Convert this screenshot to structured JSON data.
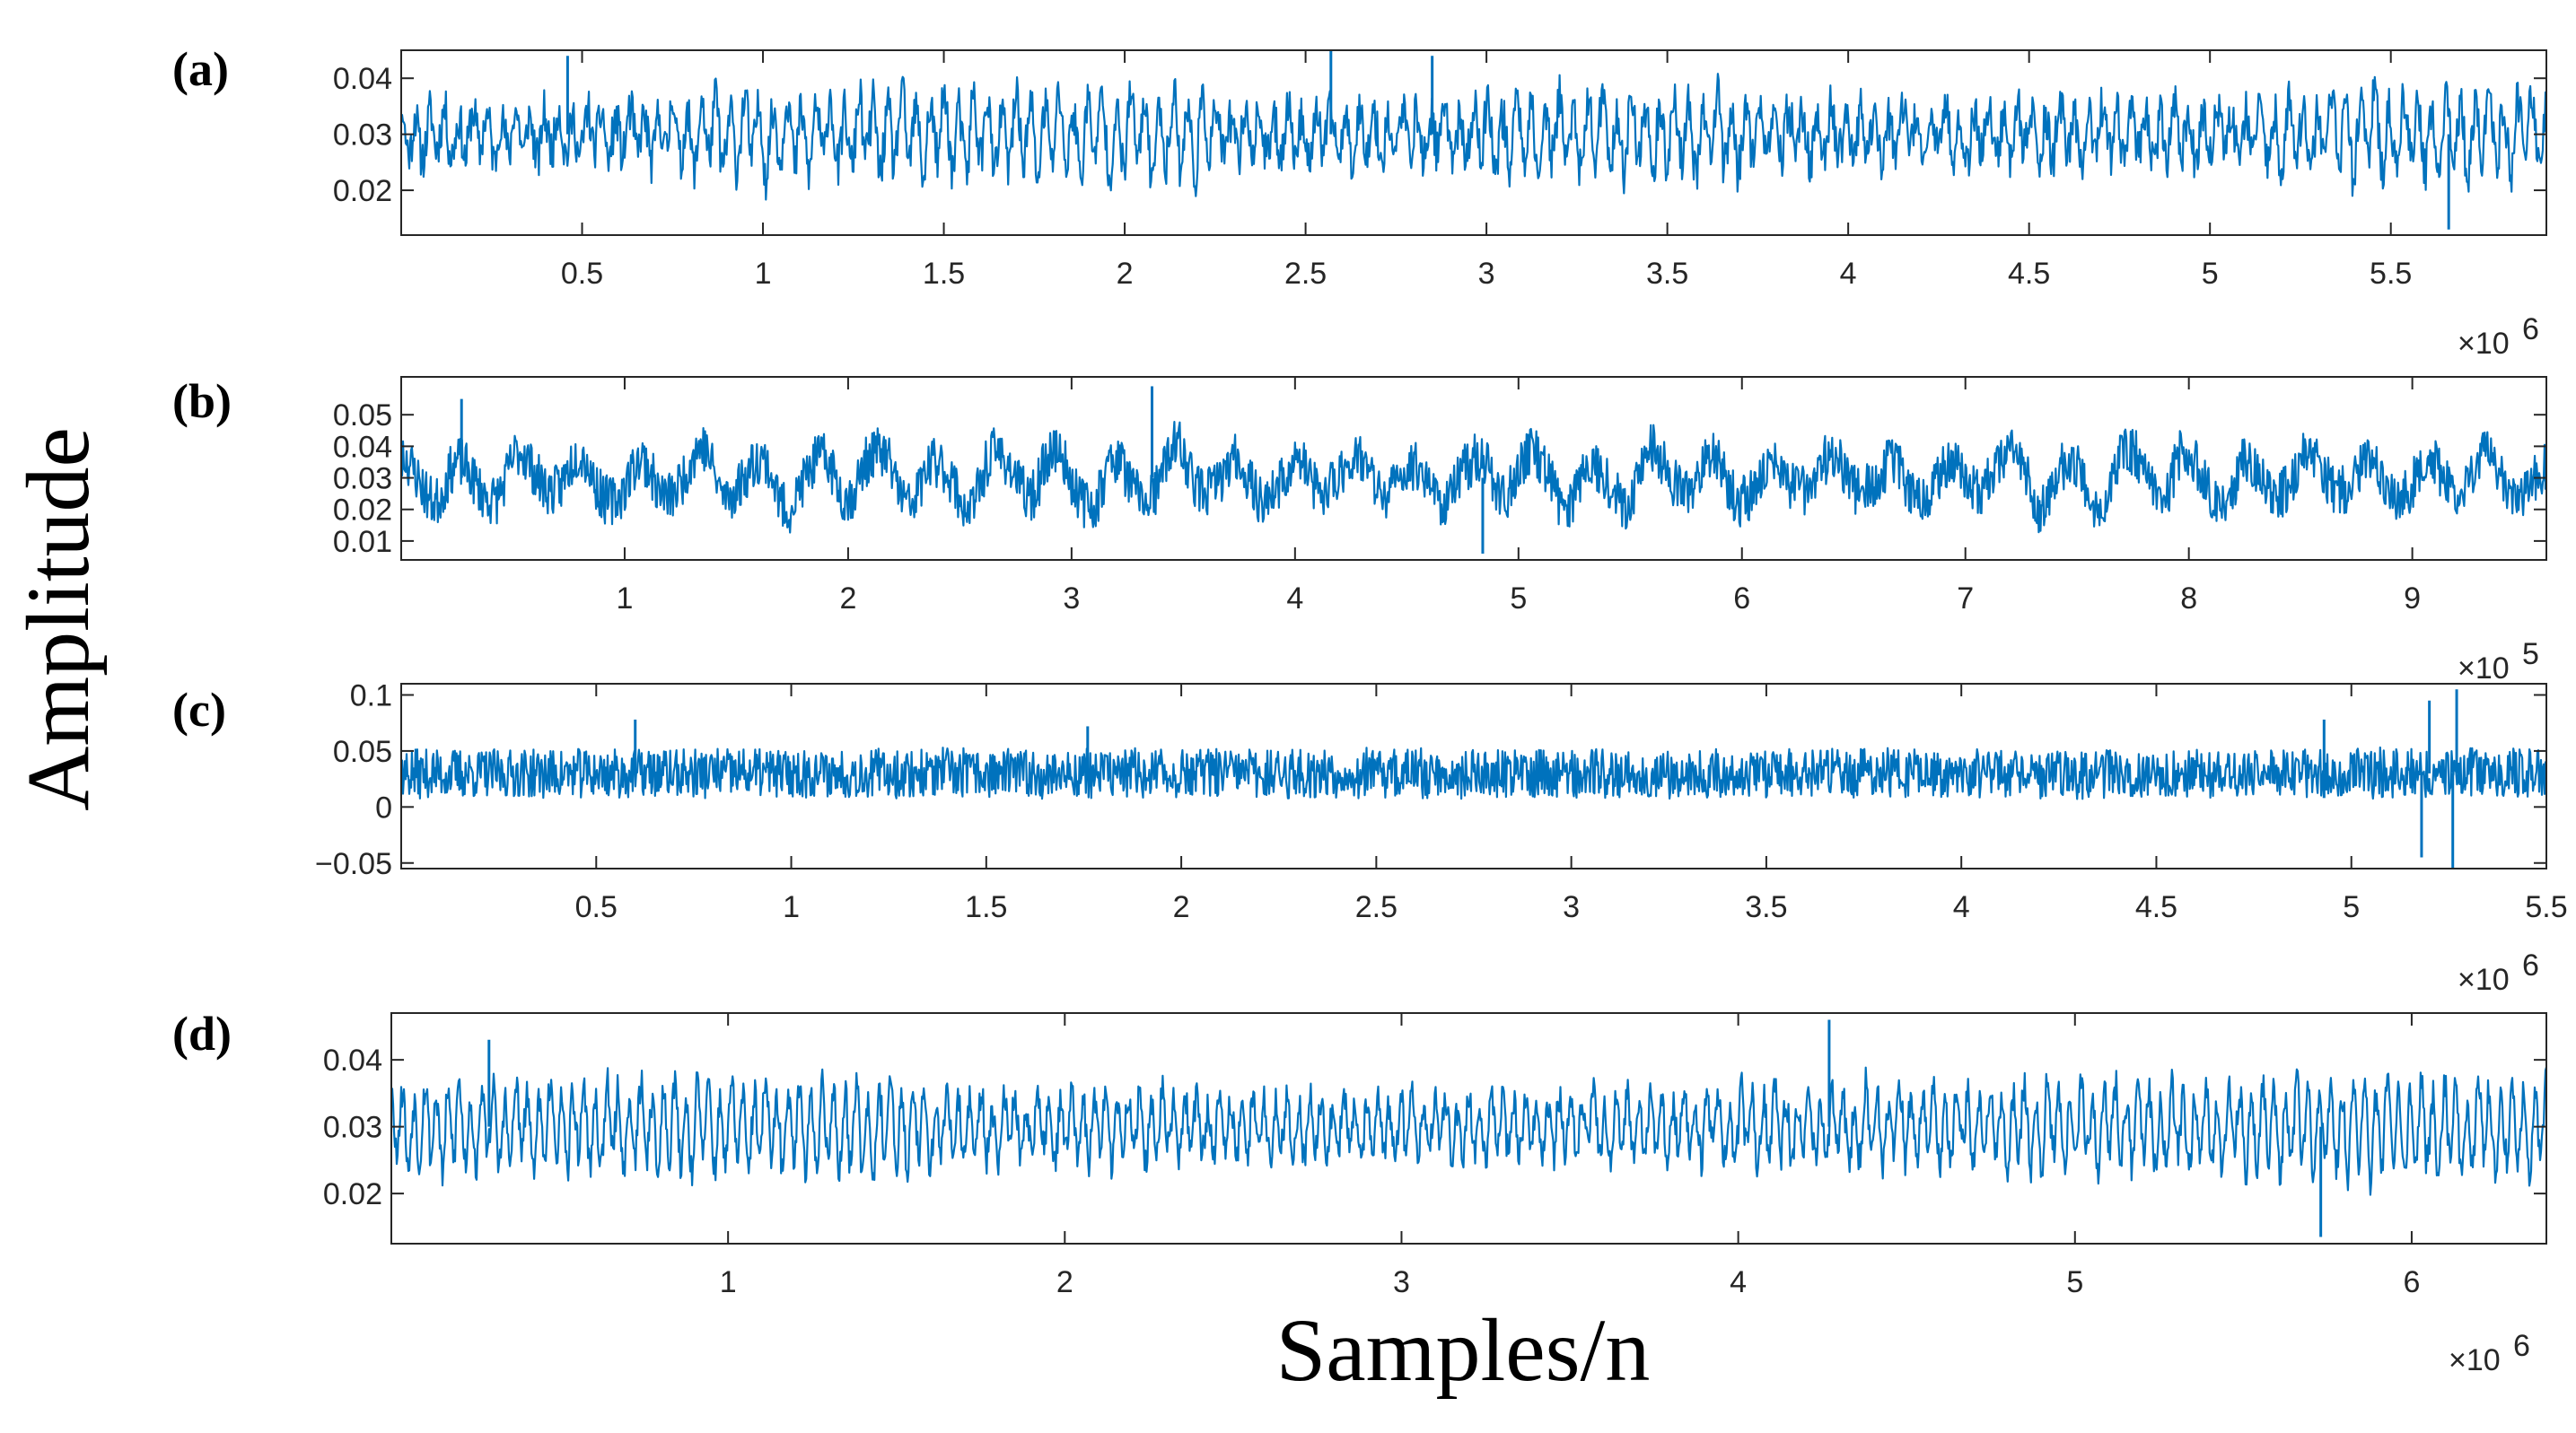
{
  "figure": {
    "xlabel": "Samples/n",
    "ylabel": "Amplitude",
    "line_color": "#0072BD"
  },
  "chart_data": [
    {
      "type": "line",
      "label": "(a)",
      "exponent_label": "×10",
      "exponent_power": "6",
      "xlim": [
        0.0,
        5.93
      ],
      "ylim": [
        0.012,
        0.045
      ],
      "xticks": [
        0.5,
        1,
        1.5,
        2,
        2.5,
        3,
        3.5,
        4,
        4.5,
        5,
        5.5
      ],
      "xtick_labels": [
        "0.5",
        "1",
        "1.5",
        "2",
        "2.5",
        "3",
        "3.5",
        "4",
        "4.5",
        "5",
        "5.5"
      ],
      "yticks": [
        0.02,
        0.03,
        0.04
      ],
      "ytick_labels": [
        "0.02",
        "0.03",
        "0.04"
      ],
      "signal": {
        "mean": 0.03,
        "amplitude": 0.009,
        "noise": 0.004,
        "osc_count": 150,
        "seed": 11
      },
      "events": [
        {
          "x": 5.66,
          "y": 0.013
        },
        {
          "x": 2.57,
          "y": 0.045
        },
        {
          "x": 2.85,
          "y": 0.044
        },
        {
          "x": 0.46,
          "y": 0.044
        }
      ]
    },
    {
      "type": "line",
      "label": "(b)",
      "exponent_label": "×10",
      "exponent_power": "5",
      "xlim": [
        0.0,
        9.6
      ],
      "ylim": [
        0.004,
        0.062
      ],
      "xticks": [
        1,
        2,
        3,
        4,
        5,
        6,
        7,
        8,
        9
      ],
      "xtick_labels": [
        "1",
        "2",
        "3",
        "4",
        "5",
        "6",
        "7",
        "8",
        "9"
      ],
      "yticks": [
        0.01,
        0.02,
        0.03,
        0.04,
        0.05
      ],
      "ytick_labels": [
        "0.01",
        "0.02",
        "0.03",
        "0.04",
        "0.05"
      ],
      "signal": {
        "mean": 0.03,
        "amplitude": 0.012,
        "noise": 0.008,
        "osc_count": 36,
        "seed": 23
      },
      "events": [
        {
          "x": 4.84,
          "y": 0.006
        },
        {
          "x": 3.36,
          "y": 0.059
        },
        {
          "x": 0.27,
          "y": 0.055
        }
      ]
    },
    {
      "type": "line",
      "label": "(c)",
      "exponent_label": "×10",
      "exponent_power": "6",
      "xlim": [
        0.0,
        5.5
      ],
      "ylim": [
        -0.055,
        0.11
      ],
      "xticks": [
        0.5,
        1,
        1.5,
        2,
        2.5,
        3,
        3.5,
        4,
        4.5,
        5,
        5.5
      ],
      "xtick_labels": [
        "0.5",
        "1",
        "1.5",
        "2",
        "2.5",
        "3",
        "3.5",
        "4",
        "4.5",
        "5",
        "5.5"
      ],
      "yticks": [
        -0.05,
        0,
        0.05,
        0.1
      ],
      "ytick_labels": [
        "−0.05",
        "0",
        "0.05",
        "0.1"
      ],
      "signal": {
        "mean": 0.03,
        "amplitude": 0.002,
        "noise": 0.022,
        "osc_count": 400,
        "seed": 37
      },
      "events": [
        {
          "x": 5.18,
          "y": -0.045
        },
        {
          "x": 5.2,
          "y": 0.095
        },
        {
          "x": 5.26,
          "y": -0.055
        },
        {
          "x": 5.27,
          "y": 0.105
        },
        {
          "x": 4.93,
          "y": 0.078
        },
        {
          "x": 4.93,
          "y": 0.008
        },
        {
          "x": 0.6,
          "y": 0.078
        },
        {
          "x": 1.76,
          "y": 0.072
        }
      ]
    },
    {
      "type": "line",
      "label": "(d)",
      "exponent_label": "×10",
      "exponent_power": "6",
      "xlim": [
        0.0,
        6.4
      ],
      "ylim": [
        0.0125,
        0.047
      ],
      "xticks": [
        1,
        2,
        3,
        4,
        5,
        6
      ],
      "xtick_labels": [
        "1",
        "2",
        "3",
        "4",
        "5",
        "6"
      ],
      "yticks": [
        0.02,
        0.03,
        0.04
      ],
      "ytick_labels": [
        "0.02",
        "0.03",
        "0.04"
      ],
      "signal": {
        "mean": 0.03,
        "amplitude": 0.009,
        "noise": 0.0025,
        "osc_count": 190,
        "seed": 53
      },
      "events": [
        {
          "x": 4.27,
          "y": 0.046
        },
        {
          "x": 5.73,
          "y": 0.0135
        },
        {
          "x": 0.29,
          "y": 0.043
        }
      ]
    }
  ]
}
